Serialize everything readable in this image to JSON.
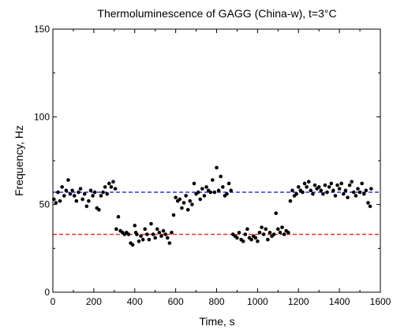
{
  "chart_data": {
    "type": "scatter",
    "title": "Thermoluminescence of GAGG (China-w), t=3°C",
    "xlabel": "Time, s",
    "ylabel": "Frequency, Hz",
    "xlim": [
      0,
      1600
    ],
    "ylim": [
      0,
      150
    ],
    "x_ticks": [
      0,
      200,
      400,
      600,
      800,
      1000,
      1200,
      1400,
      1600
    ],
    "y_ticks": [
      0,
      50,
      100,
      150
    ],
    "grid": false,
    "legend": "none",
    "reference_lines": [
      {
        "y": 57,
        "color": "#2222dd",
        "style": "dashed"
      },
      {
        "y": 33,
        "color": "#ee2222",
        "style": "dashed"
      }
    ],
    "point_color": "#000000",
    "series": [
      {
        "points": [
          [
            5,
            53
          ],
          [
            15,
            51
          ],
          [
            25,
            57
          ],
          [
            35,
            52
          ],
          [
            45,
            60
          ],
          [
            55,
            55
          ],
          [
            65,
            58
          ],
          [
            75,
            64
          ],
          [
            85,
            56
          ],
          [
            95,
            58
          ],
          [
            105,
            55
          ],
          [
            115,
            52
          ],
          [
            125,
            57
          ],
          [
            135,
            59
          ],
          [
            145,
            53
          ],
          [
            155,
            56
          ],
          [
            165,
            49
          ],
          [
            175,
            52
          ],
          [
            185,
            58
          ],
          [
            195,
            55
          ],
          [
            205,
            57
          ],
          [
            215,
            48
          ],
          [
            225,
            47
          ],
          [
            235,
            55
          ],
          [
            245,
            57
          ],
          [
            255,
            60
          ],
          [
            265,
            56
          ],
          [
            275,
            62
          ],
          [
            285,
            60
          ],
          [
            295,
            63
          ],
          [
            305,
            59
          ],
          [
            310,
            36
          ],
          [
            320,
            43
          ],
          [
            330,
            35
          ],
          [
            340,
            34
          ],
          [
            350,
            33
          ],
          [
            360,
            34
          ],
          [
            370,
            33
          ],
          [
            380,
            28
          ],
          [
            390,
            27
          ],
          [
            400,
            38
          ],
          [
            405,
            34
          ],
          [
            410,
            33
          ],
          [
            420,
            29
          ],
          [
            430,
            32
          ],
          [
            440,
            30
          ],
          [
            450,
            36
          ],
          [
            460,
            33
          ],
          [
            470,
            30
          ],
          [
            480,
            39
          ],
          [
            490,
            33
          ],
          [
            500,
            31
          ],
          [
            510,
            36
          ],
          [
            520,
            34
          ],
          [
            530,
            32
          ],
          [
            540,
            35
          ],
          [
            550,
            33
          ],
          [
            560,
            31
          ],
          [
            570,
            28
          ],
          [
            580,
            34
          ],
          [
            590,
            44
          ],
          [
            600,
            54
          ],
          [
            610,
            52
          ],
          [
            620,
            53
          ],
          [
            630,
            48
          ],
          [
            640,
            51
          ],
          [
            650,
            55
          ],
          [
            660,
            47
          ],
          [
            670,
            52
          ],
          [
            680,
            50
          ],
          [
            690,
            62
          ],
          [
            700,
            56
          ],
          [
            710,
            57
          ],
          [
            720,
            53
          ],
          [
            730,
            59
          ],
          [
            740,
            55
          ],
          [
            750,
            60
          ],
          [
            760,
            58
          ],
          [
            770,
            57
          ],
          [
            780,
            64
          ],
          [
            790,
            57
          ],
          [
            800,
            71
          ],
          [
            810,
            58
          ],
          [
            820,
            66
          ],
          [
            830,
            60
          ],
          [
            840,
            55
          ],
          [
            850,
            56
          ],
          [
            860,
            62
          ],
          [
            870,
            58
          ],
          [
            880,
            33
          ],
          [
            890,
            32
          ],
          [
            900,
            31
          ],
          [
            910,
            34
          ],
          [
            920,
            30
          ],
          [
            930,
            29
          ],
          [
            940,
            33
          ],
          [
            950,
            36
          ],
          [
            960,
            31
          ],
          [
            970,
            30
          ],
          [
            980,
            32
          ],
          [
            990,
            31
          ],
          [
            1000,
            29
          ],
          [
            1010,
            34
          ],
          [
            1020,
            37
          ],
          [
            1030,
            33
          ],
          [
            1040,
            36
          ],
          [
            1050,
            30
          ],
          [
            1060,
            34
          ],
          [
            1070,
            32
          ],
          [
            1080,
            33
          ],
          [
            1090,
            45
          ],
          [
            1100,
            36
          ],
          [
            1110,
            34
          ],
          [
            1120,
            37
          ],
          [
            1130,
            33
          ],
          [
            1140,
            35
          ],
          [
            1150,
            34
          ],
          [
            1160,
            52
          ],
          [
            1170,
            58
          ],
          [
            1180,
            55
          ],
          [
            1190,
            56
          ],
          [
            1200,
            60
          ],
          [
            1210,
            58
          ],
          [
            1220,
            57
          ],
          [
            1230,
            62
          ],
          [
            1240,
            60
          ],
          [
            1250,
            63
          ],
          [
            1260,
            58
          ],
          [
            1270,
            56
          ],
          [
            1280,
            61
          ],
          [
            1290,
            59
          ],
          [
            1300,
            60
          ],
          [
            1310,
            58
          ],
          [
            1320,
            56
          ],
          [
            1330,
            61
          ],
          [
            1340,
            57
          ],
          [
            1350,
            60
          ],
          [
            1360,
            62
          ],
          [
            1370,
            58
          ],
          [
            1380,
            55
          ],
          [
            1390,
            61
          ],
          [
            1400,
            59
          ],
          [
            1410,
            62
          ],
          [
            1420,
            56
          ],
          [
            1430,
            58
          ],
          [
            1440,
            54
          ],
          [
            1450,
            61
          ],
          [
            1460,
            63
          ],
          [
            1470,
            57
          ],
          [
            1480,
            55
          ],
          [
            1490,
            59
          ],
          [
            1500,
            57
          ],
          [
            1510,
            62
          ],
          [
            1520,
            56
          ],
          [
            1530,
            58
          ],
          [
            1540,
            51
          ],
          [
            1550,
            49
          ],
          [
            1555,
            59
          ]
        ]
      }
    ]
  }
}
